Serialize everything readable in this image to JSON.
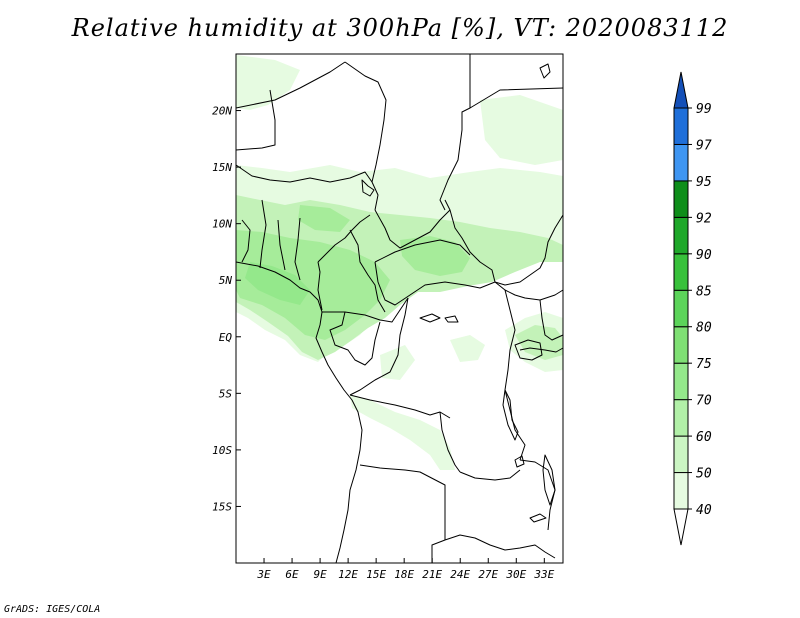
{
  "title": "Relative humidity at 300hPa [%], VT: 2020083112",
  "credit": "GrADS: IGES/COLA",
  "map": {
    "lon_range": [
      0,
      35
    ],
    "lat_range": [
      -20,
      25
    ],
    "lat_labels": [
      "20N",
      "15N",
      "10N",
      "5N",
      "EQ",
      "5S",
      "10S",
      "15S"
    ],
    "lon_labels": [
      "3E",
      "6E",
      "9E",
      "12E",
      "15E",
      "18E",
      "21E",
      "24E",
      "27E",
      "30E",
      "33E"
    ]
  },
  "colorbar": {
    "levels": [
      "40",
      "50",
      "60",
      "70",
      "75",
      "80",
      "85",
      "90",
      "92",
      "95",
      "97",
      "99"
    ],
    "colors": [
      "#ffffff",
      "#e6fbe1",
      "#cbf5c3",
      "#b2f0a8",
      "#94e88b",
      "#7fe074",
      "#5cd45a",
      "#38c13b",
      "#1fa82a",
      "#0e8e1a",
      "#3f96f2",
      "#1f6fd9",
      "#1450b8"
    ]
  }
}
